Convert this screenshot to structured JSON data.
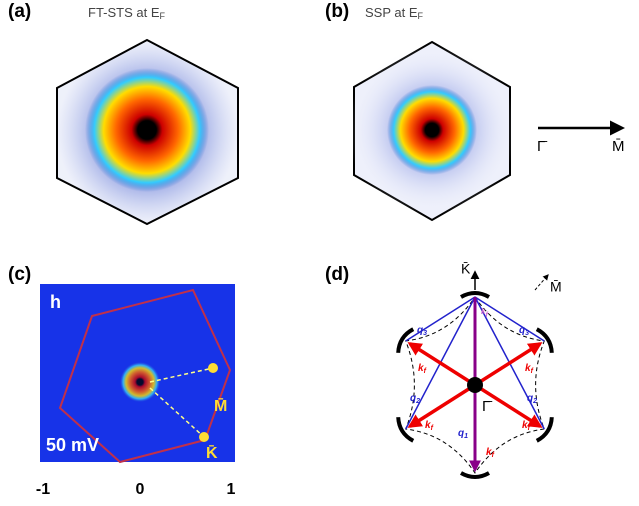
{
  "panel_a": {
    "tag": "(a)",
    "title": {
      "main": "FT-STS at E",
      "sub": "F"
    }
  },
  "panel_b": {
    "tag": "(b)",
    "title": {
      "main": "SSP at E",
      "sub": "F"
    },
    "arrow_start": "Γ̄",
    "arrow_end": "M̄"
  },
  "panel_c": {
    "tag": "(c)",
    "corner": "h",
    "bias": "50 mV",
    "point_m": "M̄",
    "point_k": "K̄",
    "x_ticks": [
      "-1",
      "0",
      "1"
    ]
  },
  "panel_d": {
    "tag": "(d)",
    "k_point": "K̄",
    "m_point": "M̄",
    "gamma": "Γ̄",
    "labels": [
      {
        "main": "q",
        "sub": "3"
      },
      {
        "main": "q",
        "sub": "3"
      },
      {
        "main": "q",
        "sub": "2"
      },
      {
        "main": "q",
        "sub": "2"
      },
      {
        "main": "q",
        "sub": "1"
      },
      {
        "main": "k",
        "sub": "f"
      },
      {
        "main": "k",
        "sub": "f"
      },
      {
        "main": "k",
        "sub": "f"
      },
      {
        "main": "k",
        "sub": "f"
      },
      {
        "main": "k",
        "sub": "f"
      },
      {
        "main": "k",
        "sub": "f"
      }
    ]
  }
}
